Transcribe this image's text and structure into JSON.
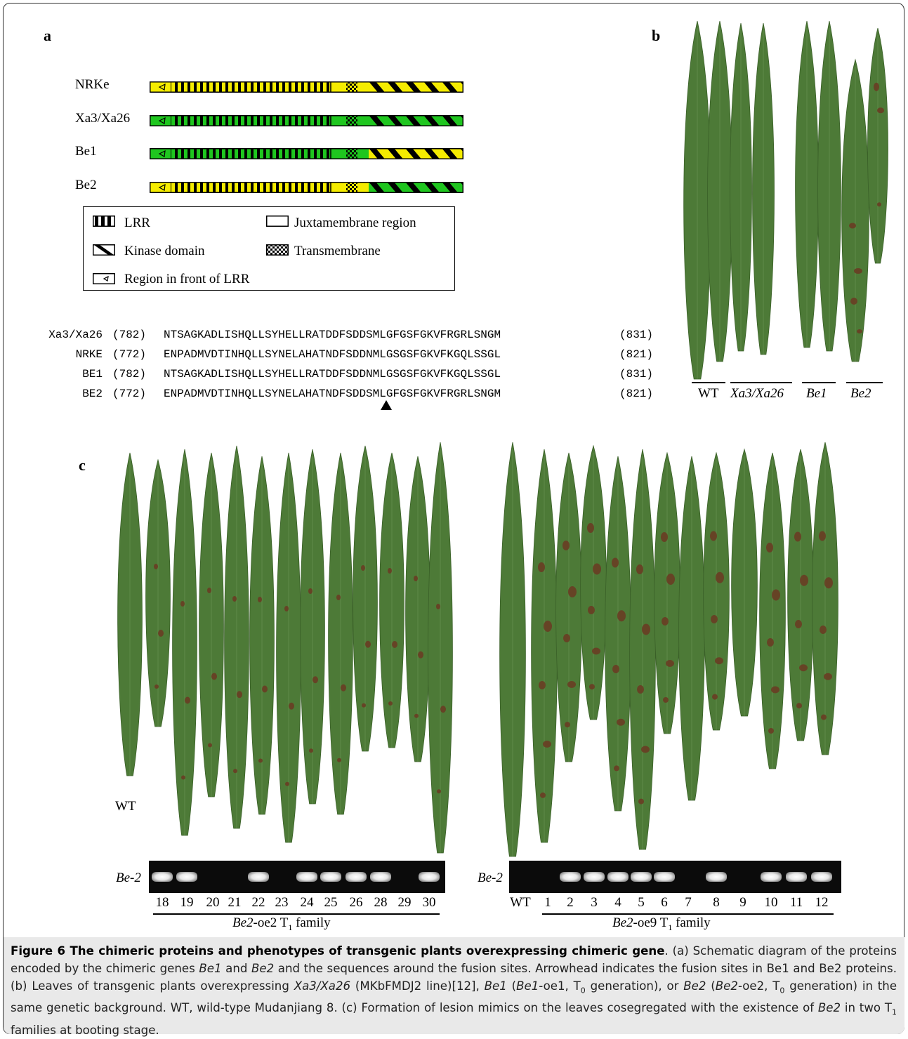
{
  "panels": {
    "a": "a",
    "b": "b",
    "c": "c"
  },
  "proteins": [
    {
      "name": "NRKe",
      "colors": [
        "yellow",
        "yellow",
        "yellow"
      ]
    },
    {
      "name": "Xa3/Xa26",
      "colors": [
        "green",
        "green",
        "green"
      ]
    },
    {
      "name": "Be1",
      "colors": [
        "green",
        "green",
        "yellow"
      ]
    },
    {
      "name": "Be2",
      "colors": [
        "yellow",
        "yellow",
        "green"
      ]
    }
  ],
  "colors": {
    "yellow": "#f5ec00",
    "green": "#1fc61f"
  },
  "legend": {
    "lrr": "LRR",
    "juxtamembrane": "Juxtamembrane region",
    "kinase": "Kinase domain",
    "transmembrane": "Transmembrane",
    "front": "Region in front of LRR"
  },
  "sequences": [
    {
      "name": "Xa3/Xa26",
      "start": "(782)",
      "seq": "NTSAGKADLISHQLLSYHELLRATDDFSDDSMLGFGSFGKVFRGRLSNGM",
      "end": "(831)"
    },
    {
      "name": "NRKE",
      "start": "(772)",
      "seq": "ENPADMVDTINHQLLSYNELAHATNDFSDDNMLGSGSFGKVFKGQLSSGL",
      "end": "(821)"
    },
    {
      "name": "BE1",
      "start": "(782)",
      "seq": "NTSAGKADLISHQLLSYHELLRATDDFSDDNMLGSGSFGKVFKGQLSSGL",
      "end": "(831)"
    },
    {
      "name": "BE2",
      "start": "(772)",
      "seq": "ENPADMVDTINHQLLSYNELAHATNDFSDDSMLGFGSFGKVFRGRLSNGM",
      "end": "(821)"
    }
  ],
  "panel_b_labels": [
    "WT",
    "Xa3/Xa26",
    "Be1",
    "Be2"
  ],
  "panel_c": {
    "wt_label": "WT",
    "gel_label": "Be-2",
    "left_family": {
      "lanes": [
        "18",
        "19",
        "20",
        "21",
        "22",
        "23",
        "24",
        "25",
        "26",
        "28",
        "29",
        "30"
      ],
      "bands": [
        1,
        1,
        0,
        0,
        1,
        0,
        1,
        1,
        1,
        1,
        0,
        1
      ],
      "label_gene": "Be2",
      "label_rest": "-oe2 T",
      "label_sub": "1",
      "label_end": " family"
    },
    "right_family": {
      "lanes": [
        "WT",
        "1",
        "2",
        "3",
        "4",
        "5",
        "6",
        "7",
        "8",
        "9",
        "10",
        "11",
        "12"
      ],
      "bands": [
        0,
        0,
        1,
        1,
        1,
        1,
        1,
        0,
        1,
        0,
        1,
        1,
        1
      ],
      "label_gene": "Be2",
      "label_rest": "-oe9 T",
      "label_sub": "1",
      "label_end": " family"
    }
  },
  "caption": {
    "title": "Figure 6 The chimeric proteins and phenotypes of transgenic plants overexpressing chimeric gene",
    "s1": ". (a) Schematic diagram of the proteins encoded by the chimeric genes ",
    "g1": "Be1",
    "s2": " and ",
    "g2": "Be2",
    "s3": " and the sequences around the fusion sites. Arrowhead indicates the fusion sites in Be1 and Be2 proteins. (b) Leaves of transgenic plants overexpressing ",
    "g3": "Xa3/Xa26",
    "s4": " (MKbFMDJ2 line)[12], ",
    "g4": "Be1",
    "s5": " (",
    "g5": "Be1",
    "s6": "-oe1, T",
    "sub1": "0",
    "s7": " generation), or ",
    "g6": "Be2",
    "s8": " (",
    "g7": "Be2",
    "s9": "-oe2, T",
    "sub2": "0",
    "s10": " generation) in the same genetic background. WT, wild-type Mudanjiang 8. (c) Formation of lesion mimics on the leaves cosegregated with the existence of ",
    "g8": "Be2",
    "s11": " in two T",
    "sub3": "1",
    "s12": " families at booting stage."
  }
}
